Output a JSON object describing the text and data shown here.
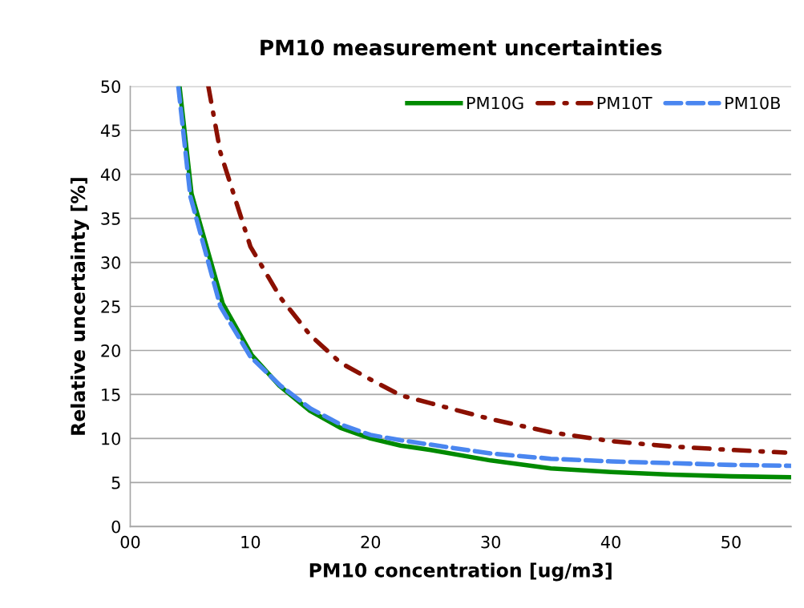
{
  "chart_data": {
    "type": "line",
    "title": "PM10 measurement uncertainties",
    "xlabel": "PM10 concentration [ug/m3]",
    "ylabel": "Relative uncertainty [%]",
    "xlim": [
      0,
      55
    ],
    "xticks": [
      {
        "value": 0,
        "label": "00"
      },
      10,
      20,
      30,
      40,
      50
    ],
    "ylim": [
      0,
      50
    ],
    "yticks": [
      0,
      5,
      10,
      15,
      20,
      25,
      30,
      35,
      40,
      45,
      50
    ],
    "grid": "y",
    "legend": "top right",
    "marker": "none",
    "series": [
      {
        "name": "PM10G",
        "color": "#008a00",
        "line_style": "solid",
        "x": [
          4.1,
          5.1,
          7.7,
          10.1,
          12.4,
          14.9,
          17.5,
          20,
          22.5,
          25,
          30,
          35,
          40,
          45,
          50,
          55
        ],
        "values": [
          50,
          37.8,
          25.3,
          19.5,
          16.0,
          13.2,
          11.2,
          10.0,
          9.2,
          8.7,
          7.5,
          6.6,
          6.2,
          5.9,
          5.7,
          5.6
        ]
      },
      {
        "name": "PM10T",
        "color": "#8b1000",
        "line_style": "dashdot",
        "x": [
          6.5,
          7.5,
          10,
          12.5,
          15,
          17.5,
          20,
          22.5,
          25,
          30,
          35,
          40,
          45,
          50,
          54.5
        ],
        "values": [
          50,
          42.5,
          31.8,
          26.0,
          21.7,
          18.6,
          16.7,
          14.9,
          14.0,
          12.2,
          10.7,
          9.7,
          9.1,
          8.7,
          8.4
        ]
      },
      {
        "name": "PM10B",
        "color": "#4a86f0",
        "line_style": "dashed",
        "x": [
          4.0,
          5.0,
          7.5,
          10,
          12.5,
          15,
          17.5,
          20,
          22.5,
          25,
          30,
          35,
          40,
          45,
          50,
          55
        ],
        "values": [
          50,
          37.5,
          25.0,
          19.3,
          16.0,
          13.4,
          11.6,
          10.4,
          9.8,
          9.3,
          8.3,
          7.7,
          7.4,
          7.2,
          7.0,
          6.9
        ]
      }
    ]
  }
}
